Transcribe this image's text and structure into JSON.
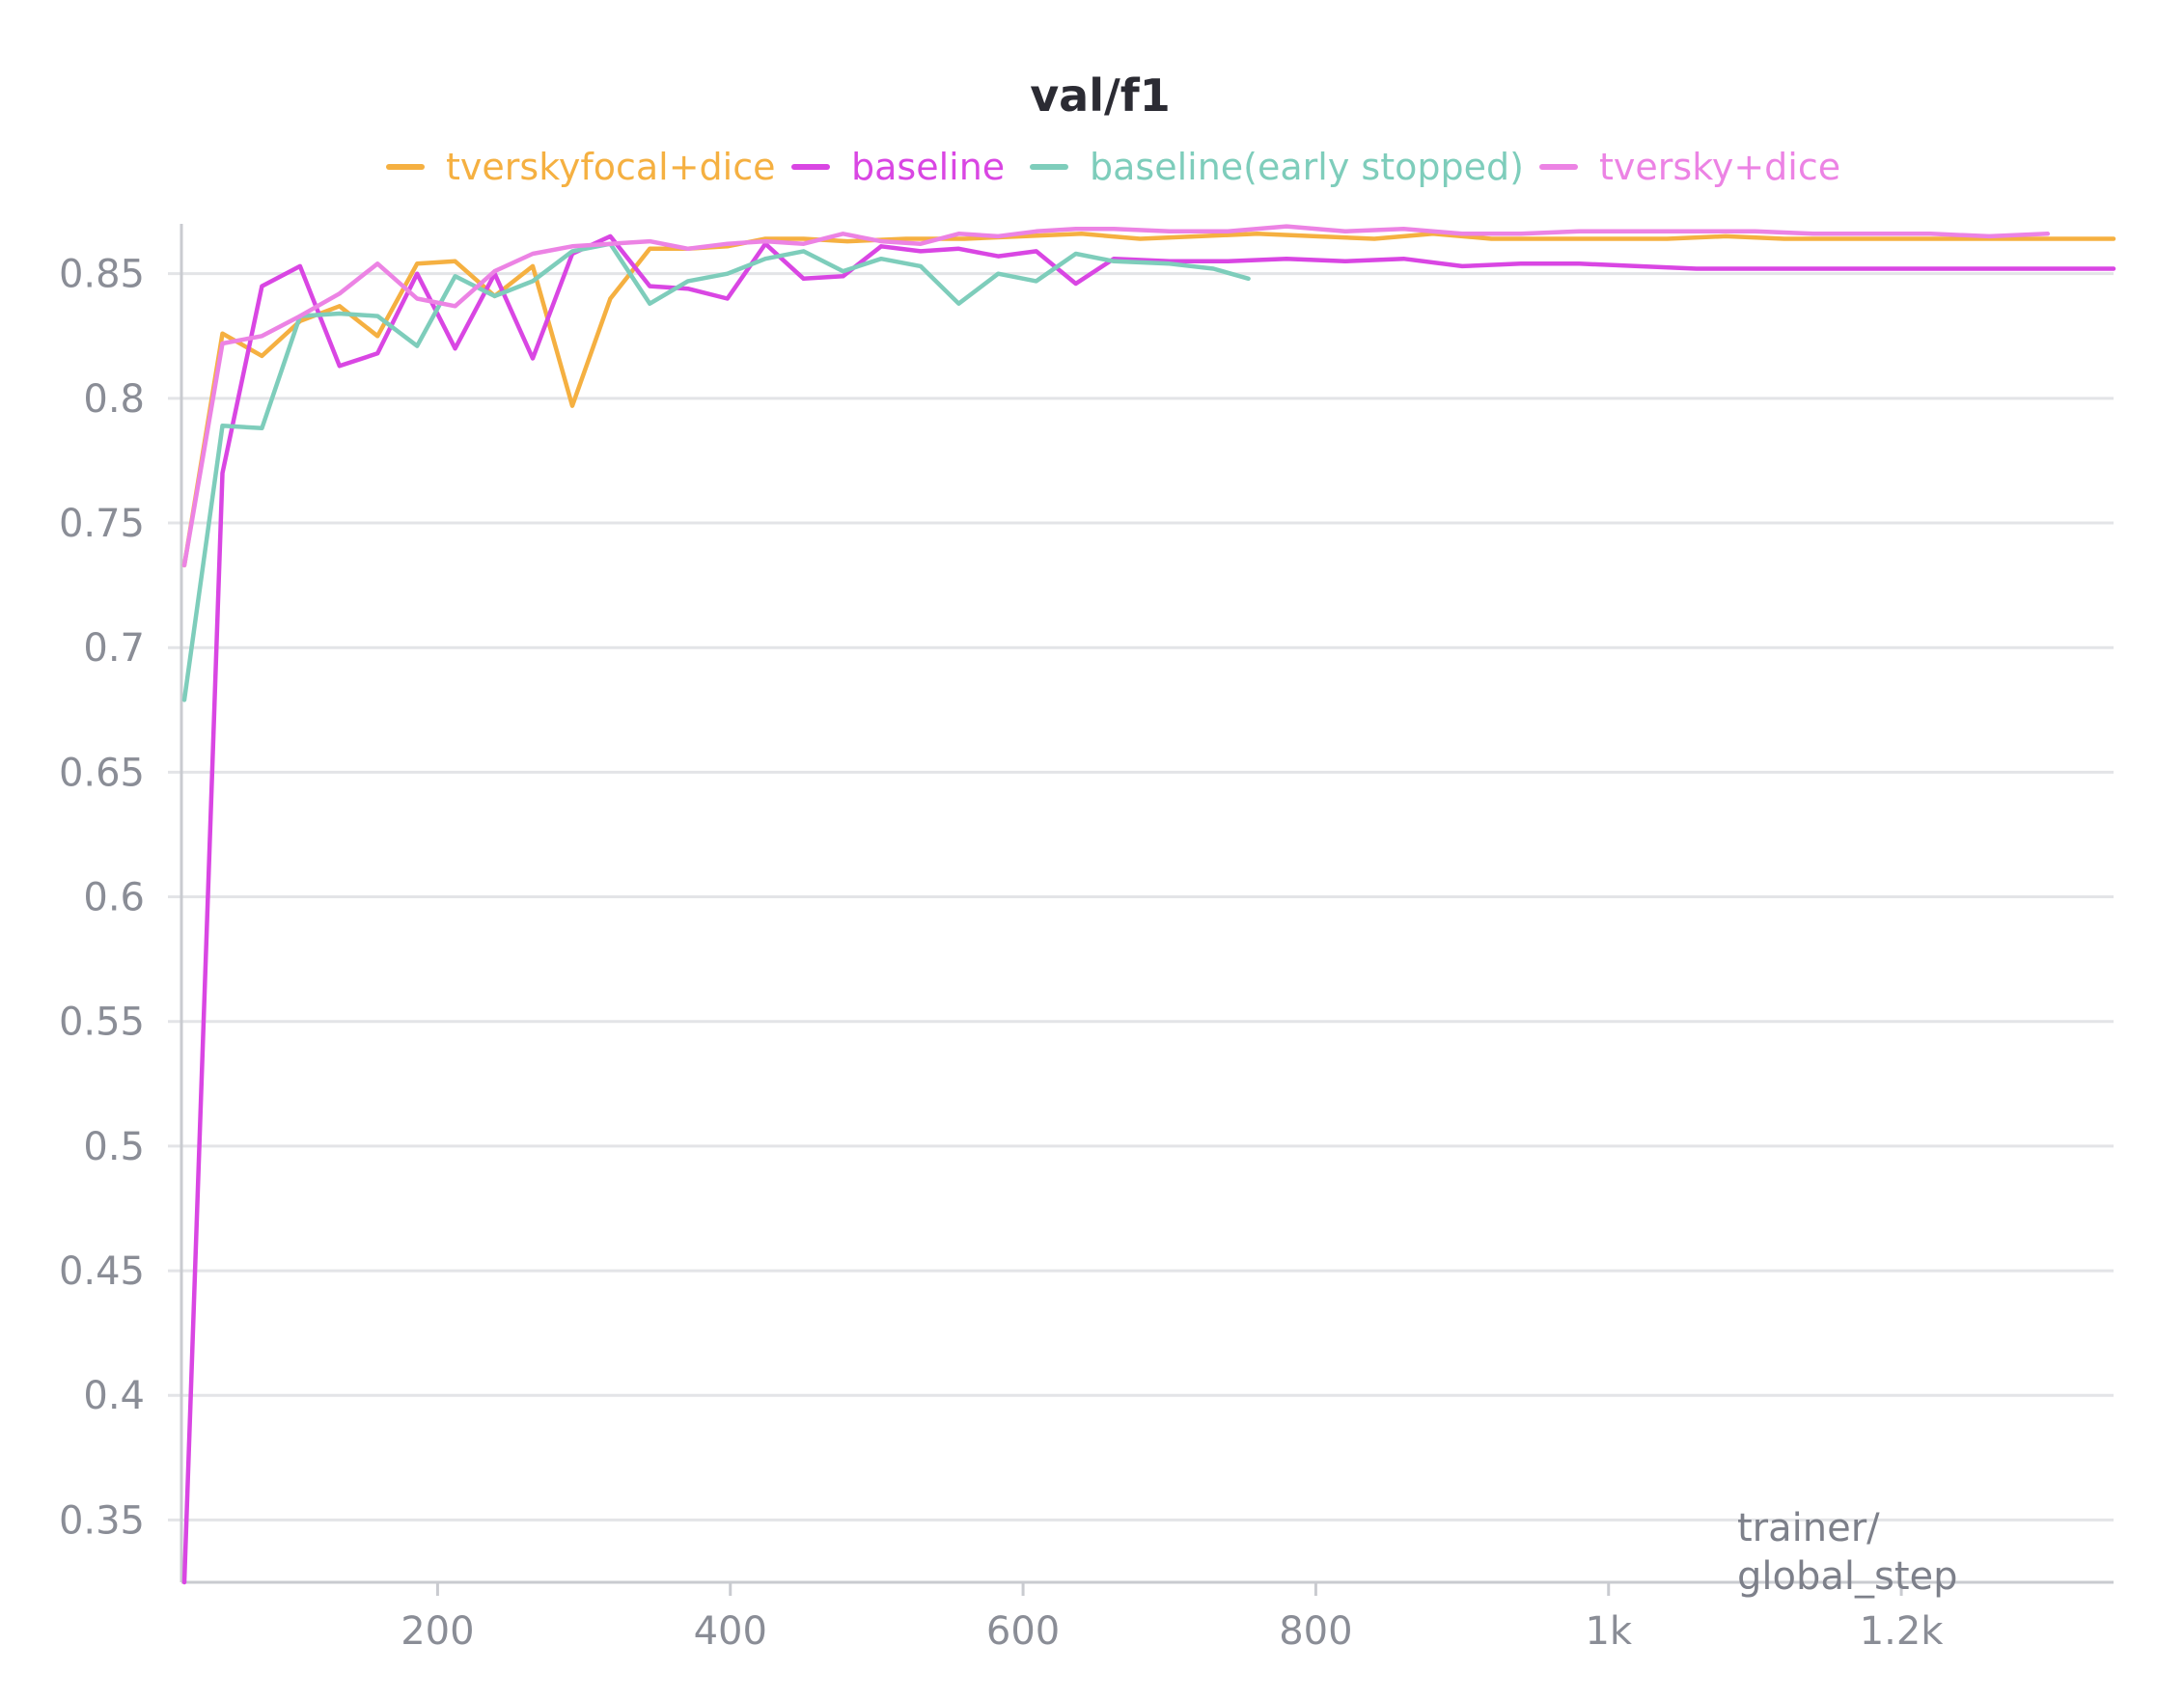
{
  "chart_data": {
    "type": "line",
    "title": "val/f1",
    "xlabel": "trainer/ global_step",
    "ylabel": "",
    "xlim": [
      25,
      1345
    ],
    "ylim": [
      0.325,
      0.87
    ],
    "x_ticks": [
      200,
      400,
      600,
      800,
      1000,
      1200
    ],
    "x_tick_labels": [
      "200",
      "400",
      "600",
      "800",
      "1k",
      "1.2k"
    ],
    "y_ticks": [
      0.35,
      0.4,
      0.45,
      0.5,
      0.55,
      0.6,
      0.65,
      0.7,
      0.75,
      0.8,
      0.85
    ],
    "y_tick_labels": [
      "0.35",
      "0.4",
      "0.45",
      "0.5",
      "0.55",
      "0.6",
      "0.65",
      "0.7",
      "0.75",
      "0.8",
      "0.85"
    ],
    "grid": true,
    "legend_position": "top",
    "series": [
      {
        "name": "tverskyfocal+dice",
        "color": "#f5b041",
        "points": [
          [
            27,
            0.733
          ],
          [
            53,
            0.826
          ],
          [
            80,
            0.817
          ],
          [
            106,
            0.831
          ],
          [
            133,
            0.837
          ],
          [
            159,
            0.825
          ],
          [
            186,
            0.854
          ],
          [
            212,
            0.855
          ],
          [
            239,
            0.841
          ],
          [
            265,
            0.853
          ],
          [
            292,
            0.797
          ],
          [
            318,
            0.84
          ],
          [
            345,
            0.86
          ],
          [
            371,
            0.86
          ],
          [
            398,
            0.861
          ],
          [
            424,
            0.864
          ],
          [
            450,
            0.864
          ],
          [
            480,
            0.863
          ],
          [
            520,
            0.864
          ],
          [
            560,
            0.864
          ],
          [
            600,
            0.865
          ],
          [
            640,
            0.866
          ],
          [
            680,
            0.864
          ],
          [
            720,
            0.865
          ],
          [
            760,
            0.866
          ],
          [
            800,
            0.865
          ],
          [
            840,
            0.864
          ],
          [
            880,
            0.866
          ],
          [
            920,
            0.864
          ],
          [
            960,
            0.864
          ],
          [
            1000,
            0.864
          ],
          [
            1040,
            0.864
          ],
          [
            1080,
            0.865
          ],
          [
            1120,
            0.864
          ],
          [
            1160,
            0.864
          ],
          [
            1200,
            0.864
          ],
          [
            1240,
            0.864
          ],
          [
            1280,
            0.864
          ],
          [
            1345,
            0.864
          ]
        ]
      },
      {
        "name": "baseline",
        "color": "#d946e3",
        "points": [
          [
            27,
            0.325
          ],
          [
            53,
            0.77
          ],
          [
            80,
            0.845
          ],
          [
            106,
            0.853
          ],
          [
            133,
            0.813
          ],
          [
            159,
            0.818
          ],
          [
            186,
            0.85
          ],
          [
            212,
            0.82
          ],
          [
            239,
            0.85
          ],
          [
            265,
            0.816
          ],
          [
            292,
            0.858
          ],
          [
            318,
            0.865
          ],
          [
            345,
            0.845
          ],
          [
            371,
            0.844
          ],
          [
            398,
            0.84
          ],
          [
            424,
            0.862
          ],
          [
            450,
            0.848
          ],
          [
            477,
            0.849
          ],
          [
            503,
            0.861
          ],
          [
            530,
            0.859
          ],
          [
            556,
            0.86
          ],
          [
            583,
            0.857
          ],
          [
            609,
            0.859
          ],
          [
            636,
            0.846
          ],
          [
            662,
            0.856
          ],
          [
            700,
            0.855
          ],
          [
            740,
            0.855
          ],
          [
            780,
            0.856
          ],
          [
            820,
            0.855
          ],
          [
            860,
            0.856
          ],
          [
            900,
            0.853
          ],
          [
            940,
            0.854
          ],
          [
            980,
            0.854
          ],
          [
            1020,
            0.853
          ],
          [
            1060,
            0.852
          ],
          [
            1100,
            0.852
          ],
          [
            1140,
            0.852
          ],
          [
            1180,
            0.852
          ],
          [
            1220,
            0.852
          ],
          [
            1260,
            0.852
          ],
          [
            1345,
            0.852
          ]
        ]
      },
      {
        "name": "baseline(early stopped)",
        "color": "#7ecdbb",
        "points": [
          [
            27,
            0.679
          ],
          [
            53,
            0.789
          ],
          [
            80,
            0.788
          ],
          [
            106,
            0.833
          ],
          [
            133,
            0.834
          ],
          [
            159,
            0.833
          ],
          [
            186,
            0.821
          ],
          [
            212,
            0.849
          ],
          [
            239,
            0.841
          ],
          [
            265,
            0.847
          ],
          [
            292,
            0.859
          ],
          [
            318,
            0.862
          ],
          [
            345,
            0.838
          ],
          [
            371,
            0.847
          ],
          [
            398,
            0.85
          ],
          [
            424,
            0.856
          ],
          [
            450,
            0.859
          ],
          [
            477,
            0.851
          ],
          [
            503,
            0.856
          ],
          [
            530,
            0.853
          ],
          [
            556,
            0.838
          ],
          [
            583,
            0.85
          ],
          [
            609,
            0.847
          ],
          [
            636,
            0.858
          ],
          [
            662,
            0.855
          ],
          [
            700,
            0.854
          ],
          [
            730,
            0.852
          ],
          [
            754,
            0.848
          ]
        ]
      },
      {
        "name": "tversky+dice",
        "color": "#ec83e4",
        "points": [
          [
            27,
            0.733
          ],
          [
            53,
            0.822
          ],
          [
            80,
            0.825
          ],
          [
            106,
            0.833
          ],
          [
            133,
            0.842
          ],
          [
            159,
            0.854
          ],
          [
            186,
            0.84
          ],
          [
            212,
            0.837
          ],
          [
            239,
            0.851
          ],
          [
            265,
            0.858
          ],
          [
            292,
            0.861
          ],
          [
            318,
            0.862
          ],
          [
            345,
            0.863
          ],
          [
            371,
            0.86
          ],
          [
            398,
            0.862
          ],
          [
            424,
            0.863
          ],
          [
            450,
            0.862
          ],
          [
            477,
            0.866
          ],
          [
            503,
            0.863
          ],
          [
            530,
            0.862
          ],
          [
            556,
            0.866
          ],
          [
            583,
            0.865
          ],
          [
            609,
            0.867
          ],
          [
            636,
            0.868
          ],
          [
            662,
            0.868
          ],
          [
            700,
            0.867
          ],
          [
            740,
            0.867
          ],
          [
            780,
            0.869
          ],
          [
            820,
            0.867
          ],
          [
            860,
            0.868
          ],
          [
            900,
            0.866
          ],
          [
            940,
            0.866
          ],
          [
            980,
            0.867
          ],
          [
            1020,
            0.867
          ],
          [
            1060,
            0.867
          ],
          [
            1100,
            0.867
          ],
          [
            1140,
            0.866
          ],
          [
            1180,
            0.866
          ],
          [
            1220,
            0.866
          ],
          [
            1260,
            0.865
          ],
          [
            1300,
            0.866
          ]
        ]
      }
    ]
  }
}
